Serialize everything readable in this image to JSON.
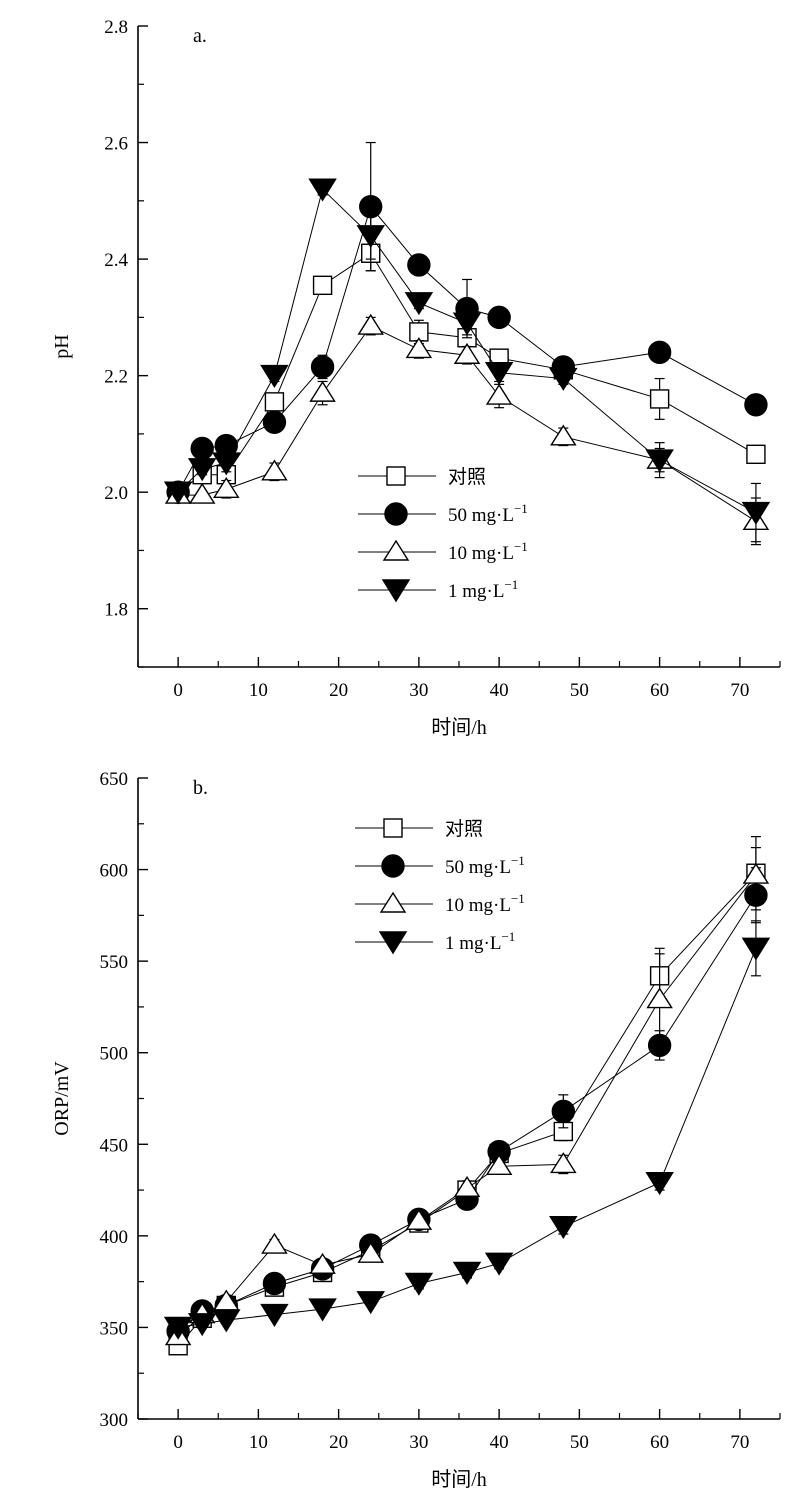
{
  "chart_data": [
    {
      "type": "line",
      "panel_label": "a.",
      "xlabel": "时间/h",
      "ylabel": "pH",
      "xlim": [
        -5,
        75
      ],
      "ylim": [
        1.7,
        2.8
      ],
      "xticks": [
        0,
        10,
        20,
        30,
        40,
        50,
        60,
        70
      ],
      "xtick_labels": [
        "0",
        "10",
        "20",
        "30",
        "40",
        "50",
        "60",
        "70"
      ],
      "yticks": [
        1.8,
        2.0,
        2.2,
        2.4,
        2.6,
        2.8
      ],
      "ytick_labels": [
        "1.8",
        "2.0",
        "2.2",
        "2.4",
        "2.6",
        "2.8"
      ],
      "legend_position": "center-bottom",
      "series": [
        {
          "name": "对照",
          "legend_sup": "",
          "marker": "square-open",
          "x": [
            0,
            3,
            6,
            12,
            18,
            24,
            30,
            36,
            40,
            48,
            60,
            72
          ],
          "y": [
            2.0,
            2.03,
            2.03,
            2.155,
            2.355,
            2.41,
            2.275,
            2.265,
            2.23,
            2.21,
            2.16,
            2.065
          ],
          "err": [
            0.005,
            0.01,
            0.01,
            0.015,
            0.005,
            0.03,
            0.02,
            0.015,
            0.01,
            0.005,
            0.035,
            0.005
          ]
        },
        {
          "name": "50 mg·L",
          "legend_sup": "−1",
          "marker": "circle-filled",
          "x": [
            0,
            3,
            6,
            12,
            18,
            24,
            30,
            36,
            40,
            48,
            60,
            72
          ],
          "y": [
            2.0,
            2.075,
            2.08,
            2.12,
            2.215,
            2.49,
            2.39,
            2.315,
            2.3,
            2.215,
            2.24,
            2.15
          ],
          "err": [
            0.005,
            0.01,
            0.01,
            0.01,
            0.02,
            0.11,
            0.005,
            0.05,
            0.01,
            0.005,
            0.005,
            0.005
          ]
        },
        {
          "name": "10 mg·L",
          "legend_sup": "−1",
          "marker": "triangle-up-open",
          "x": [
            0,
            3,
            6,
            12,
            18,
            24,
            30,
            36,
            40,
            48,
            60,
            72
          ],
          "y": [
            1.995,
            1.995,
            2.005,
            2.035,
            2.17,
            2.285,
            2.245,
            2.235,
            2.165,
            2.095,
            2.055,
            1.95
          ],
          "err": [
            0.005,
            0.005,
            0.015,
            0.015,
            0.02,
            0.015,
            0.015,
            0.015,
            0.02,
            0.015,
            0.03,
            0.04
          ]
        },
        {
          "name": "1 mg·L",
          "legend_sup": "−1",
          "marker": "triangle-down-filled",
          "x": [
            0,
            3,
            6,
            12,
            18,
            24,
            30,
            36,
            40,
            48,
            60,
            72
          ],
          "y": [
            2.0,
            2.04,
            2.05,
            2.2,
            2.52,
            2.44,
            2.325,
            2.29,
            2.205,
            2.195,
            2.055,
            1.965
          ],
          "err": [
            0.005,
            0.01,
            0.015,
            0.01,
            0.01,
            0.04,
            0.01,
            0.02,
            0.015,
            0.01,
            0.02,
            0.05
          ]
        }
      ]
    },
    {
      "type": "line",
      "panel_label": "b.",
      "xlabel": "时间/h",
      "ylabel": "ORP/mV",
      "xlim": [
        -5,
        75
      ],
      "ylim": [
        300,
        650
      ],
      "xticks": [
        0,
        10,
        20,
        30,
        40,
        50,
        60,
        70
      ],
      "xtick_labels": [
        "0",
        "10",
        "20",
        "30",
        "40",
        "50",
        "60",
        "70"
      ],
      "yticks": [
        300,
        350,
        400,
        450,
        500,
        550,
        600,
        650
      ],
      "ytick_labels": [
        "300",
        "350",
        "400",
        "450",
        "500",
        "550",
        "600",
        "650"
      ],
      "legend_position": "top-center",
      "series": [
        {
          "name": "对照",
          "legend_sup": "",
          "marker": "square-open",
          "x": [
            0,
            3,
            6,
            12,
            18,
            24,
            30,
            36,
            40,
            48,
            60,
            72
          ],
          "y": [
            340,
            355,
            362,
            372,
            380,
            392,
            407,
            425,
            445,
            457,
            542,
            598
          ],
          "err": [
            3,
            3,
            3,
            3,
            3,
            4,
            4,
            4,
            5,
            5,
            15,
            20
          ]
        },
        {
          "name": "50 mg·L",
          "legend_sup": "−1",
          "marker": "circle-filled",
          "x": [
            0,
            3,
            6,
            12,
            18,
            24,
            30,
            36,
            40,
            48,
            60,
            72
          ],
          "y": [
            348,
            359,
            362,
            374,
            382,
            395,
            409,
            420,
            446,
            468,
            504,
            586
          ],
          "err": [
            3,
            3,
            3,
            3,
            3,
            3,
            4,
            4,
            5,
            9,
            8,
            15
          ]
        },
        {
          "name": "10 mg·L",
          "legend_sup": "−1",
          "marker": "triangle-up-open",
          "x": [
            0,
            3,
            6,
            12,
            18,
            24,
            30,
            36,
            40,
            48,
            60,
            72
          ],
          "y": [
            345,
            357,
            364,
            395,
            384,
            390,
            408,
            426,
            438,
            439,
            529,
            597
          ],
          "err": [
            3,
            3,
            3,
            3,
            3,
            3,
            4,
            4,
            4,
            5,
            25,
            15
          ]
        },
        {
          "name": "1 mg·L",
          "legend_sup": "−1",
          "marker": "triangle-down-filled",
          "x": [
            0,
            3,
            6,
            12,
            18,
            24,
            30,
            36,
            40,
            48,
            60,
            72
          ],
          "y": [
            350,
            352,
            354,
            357,
            360,
            364,
            374,
            380,
            385,
            405,
            429,
            557
          ],
          "err": [
            2,
            2,
            2,
            2,
            2,
            2,
            3,
            3,
            3,
            4,
            4,
            15
          ]
        }
      ]
    }
  ]
}
